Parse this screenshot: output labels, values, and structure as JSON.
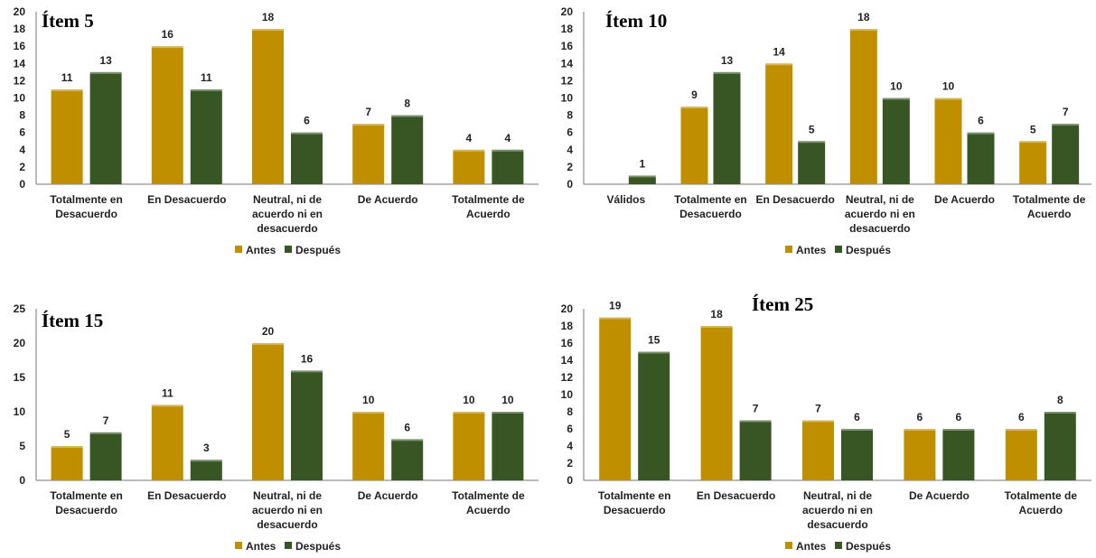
{
  "legend": {
    "antes": "Antes",
    "despues": "Después",
    "placement": "bottom"
  },
  "colors": {
    "antes": "#BF8F00",
    "despues": "#375623"
  },
  "chart_data": [
    {
      "type": "bar",
      "title": "Ítem 5",
      "categories": [
        [
          "Totalmente en",
          "Desacuerdo"
        ],
        [
          "En Desacuerdo"
        ],
        [
          "Neutral, ni de",
          "acuerdo ni en",
          "desacuerdo"
        ],
        [
          "De Acuerdo"
        ],
        [
          "Totalmente de",
          "Acuerdo"
        ]
      ],
      "series": [
        {
          "name": "Antes",
          "values": [
            11,
            16,
            18,
            7,
            4
          ]
        },
        {
          "name": "Después",
          "values": [
            13,
            11,
            6,
            8,
            4
          ]
        }
      ],
      "ylim": [
        0,
        20
      ],
      "ystep": 2,
      "grid": false,
      "legend": "bottom"
    },
    {
      "type": "bar",
      "title": "Ítem 10",
      "categories": [
        [
          "Válidos"
        ],
        [
          "Totalmente en",
          "Desacuerdo"
        ],
        [
          "En Desacuerdo"
        ],
        [
          "Neutral, ni de",
          "acuerdo ni en",
          "desacuerdo"
        ],
        [
          "De Acuerdo"
        ],
        [
          "Totalmente de",
          "Acuerdo"
        ]
      ],
      "series": [
        {
          "name": "Antes",
          "values": [
            null,
            9,
            14,
            18,
            10,
            5
          ]
        },
        {
          "name": "Después",
          "values": [
            1,
            13,
            5,
            10,
            6,
            7
          ]
        }
      ],
      "ylim": [
        0,
        20
      ],
      "ystep": 2,
      "grid": false,
      "legend": "bottom"
    },
    {
      "type": "bar",
      "title": "Ítem 15",
      "categories": [
        [
          "Totalmente en",
          "Desacuerdo"
        ],
        [
          "En Desacuerdo"
        ],
        [
          "Neutral, ni de",
          "acuerdo ni en",
          "desacuerdo"
        ],
        [
          "De Acuerdo"
        ],
        [
          "Totalmente de",
          "Acuerdo"
        ]
      ],
      "series": [
        {
          "name": "Antes",
          "values": [
            5,
            11,
            20,
            10,
            10
          ]
        },
        {
          "name": "Después",
          "values": [
            7,
            3,
            16,
            6,
            10
          ]
        }
      ],
      "ylim": [
        0,
        25
      ],
      "ystep": 5,
      "grid": false,
      "legend": "bottom"
    },
    {
      "type": "bar",
      "title": "Ítem 25",
      "categories": [
        [
          "Totalmente en",
          "Desacuerdo"
        ],
        [
          "En Desacuerdo"
        ],
        [
          "Neutral, ni de",
          "acuerdo ni en",
          "desacuerdo"
        ],
        [
          "De Acuerdo"
        ],
        [
          "Totalmente de",
          "Acuerdo"
        ]
      ],
      "series": [
        {
          "name": "Antes",
          "values": [
            19,
            18,
            7,
            6,
            6
          ]
        },
        {
          "name": "Después",
          "values": [
            15,
            7,
            6,
            6,
            8
          ]
        }
      ],
      "ylim": [
        0,
        20
      ],
      "ystep": 2,
      "grid": false,
      "legend": "bottom"
    }
  ]
}
